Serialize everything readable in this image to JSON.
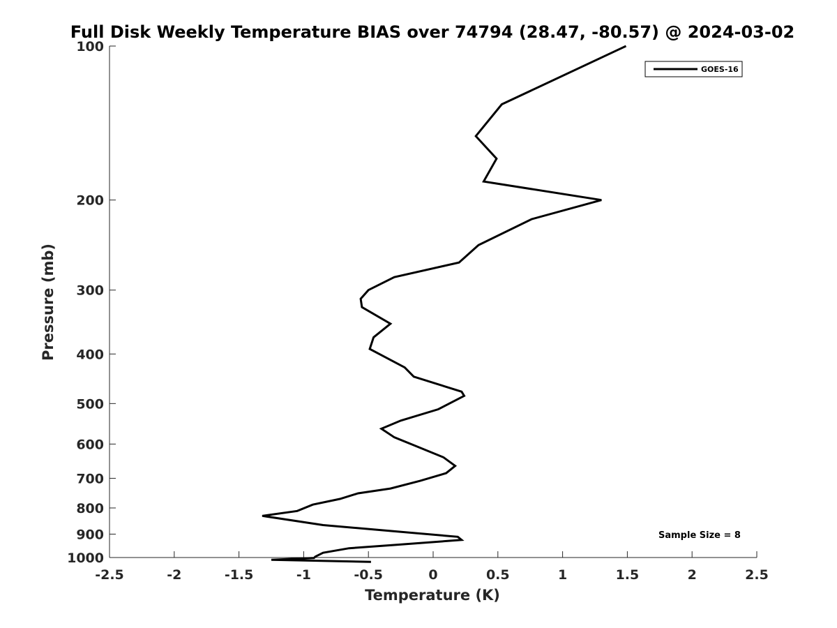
{
  "chart_data": {
    "type": "line",
    "title": "Full Disk Weekly Temperature BIAS over 74794 (28.47, -80.57) @ 2024-03-02",
    "xlabel": "Temperature (K)",
    "ylabel": "Pressure (mb)",
    "xlim": [
      -2.5,
      2.5
    ],
    "ylim": [
      100,
      1000
    ],
    "y_scale": "log",
    "y_reversed": true,
    "grid": false,
    "x_ticks": [
      -2.5,
      -2,
      -1.5,
      -1,
      -0.5,
      0,
      0.5,
      1,
      1.5,
      2,
      2.5
    ],
    "x_tick_labels": [
      "-2.5",
      "-2",
      "-1.5",
      "-1",
      "-0.5",
      "0",
      "0.5",
      "1",
      "1.5",
      "2",
      "2.5"
    ],
    "y_ticks": [
      100,
      200,
      300,
      400,
      500,
      600,
      700,
      800,
      900,
      1000
    ],
    "y_tick_labels": [
      "100",
      "200",
      "300",
      "400",
      "500",
      "600",
      "700",
      "800",
      "900",
      "1000"
    ],
    "legend": {
      "position": "top-right",
      "entries": [
        "GOES-16"
      ]
    },
    "annotations": [
      "Sample Size = 8"
    ],
    "series": [
      {
        "name": "GOES-16",
        "color": "#000000",
        "x": [
          1.49,
          0.53,
          0.33,
          0.49,
          0.39,
          1.3,
          0.76,
          0.35,
          0.2,
          -0.3,
          -0.5,
          -0.56,
          -0.55,
          -0.33,
          -0.46,
          -0.49,
          -0.22,
          -0.15,
          0.22,
          0.24,
          0.04,
          -0.25,
          -0.4,
          -0.3,
          -0.15,
          0.08,
          0.17,
          0.1,
          -0.1,
          -0.33,
          -0.58,
          -0.72,
          -0.93,
          -1.05,
          -1.32,
          -0.85,
          0.19,
          0.22,
          -0.3,
          -0.65,
          -0.85,
          -0.91,
          -0.92,
          -1.25,
          -0.48
        ],
        "y": [
          100,
          130,
          150,
          166,
          184,
          200,
          218,
          245,
          265,
          283,
          300,
          312,
          324,
          349,
          371,
          391,
          425,
          443,
          474,
          483,
          513,
          540,
          560,
          582,
          603,
          637,
          662,
          684,
          708,
          733,
          749,
          768,
          788,
          811,
          829,
          864,
          911,
          924,
          945,
          959,
          979,
          996,
          1002,
          1010,
          1020
        ]
      }
    ]
  }
}
